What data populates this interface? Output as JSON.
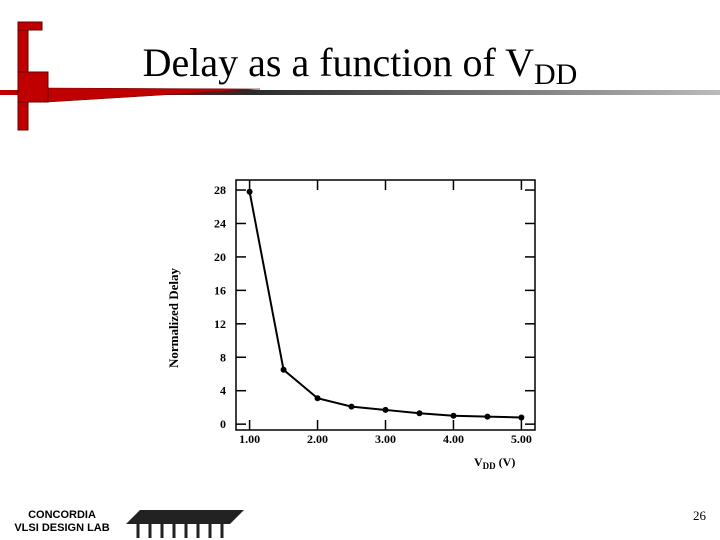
{
  "slide": {
    "title": "Delay as a function of V",
    "title_sub": "DD",
    "page_number": "26",
    "logo_line1": "CONCORDIA",
    "logo_line2": "VLSI DESIGN LAB"
  },
  "chart_data": {
    "type": "line",
    "y_label": "Normalized Delay",
    "x_label": "V",
    "x_label_sub": "DD",
    "x_label_unit": "(V)",
    "x": [
      1.0,
      1.5,
      2.0,
      2.5,
      3.0,
      3.5,
      4.0,
      4.5,
      5.0
    ],
    "values": [
      27.8,
      6.5,
      3.1,
      2.1,
      1.7,
      1.3,
      1.0,
      0.9,
      0.8
    ],
    "color": "#000000",
    "xlim": [
      0.8,
      5.2
    ],
    "ylim": [
      -0.7,
      29.2
    ],
    "xticks": [
      {
        "value": 1,
        "label": "1.00"
      },
      {
        "value": 2,
        "label": "2.00"
      },
      {
        "value": 3,
        "label": "3.00"
      },
      {
        "value": 4,
        "label": "4.00"
      },
      {
        "value": 5,
        "label": "5.00"
      }
    ],
    "yticks": [
      0,
      4,
      8,
      12,
      16,
      20,
      24,
      28
    ]
  }
}
